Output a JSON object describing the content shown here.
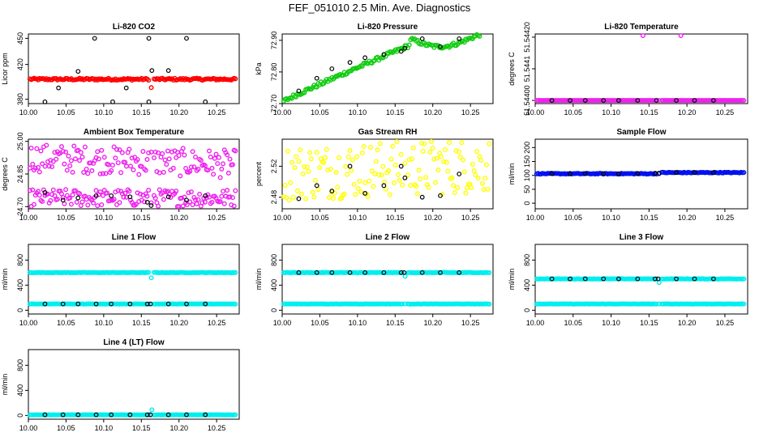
{
  "page_title": "FEF_051010  2.5 Min. Ave. Diagnostics",
  "colors": {
    "red": "#ff0000",
    "green": "#11cc11",
    "magenta": "#ee22ee",
    "yellow": "#ffff00",
    "blue": "#0011ee",
    "cyan": "#00eeee",
    "black": "#000000"
  },
  "chart_data": [
    {
      "type": "scatter",
      "title": "Li-820 CO2",
      "ylabel": "Licor ppm",
      "xlim": [
        10.0,
        10.28
      ],
      "ylim": [
        375,
        455
      ],
      "xticks": [
        "10.00",
        "10.05",
        "10.10",
        "10.15",
        "10.20",
        "10.25"
      ],
      "yticks": [
        {
          "v": 380,
          "t": "380"
        },
        {
          "v": 420,
          "t": "420"
        },
        {
          "v": 450,
          "t": "450"
        }
      ],
      "series": [
        {
          "name": "co2",
          "color": "red",
          "gen": "flat",
          "base": 403,
          "noise": 1.2,
          "dip_at": 10.163,
          "dip": -10
        }
      ],
      "markers": [
        [
          10.022,
          377
        ],
        [
          10.04,
          393
        ],
        [
          10.066,
          412
        ],
        [
          10.088,
          450
        ],
        [
          10.112,
          377
        ],
        [
          10.13,
          393
        ],
        [
          10.16,
          450
        ],
        [
          10.16,
          377
        ],
        [
          10.164,
          413
        ],
        [
          10.21,
          450
        ],
        [
          10.235,
          377
        ],
        [
          10.186,
          413
        ]
      ]
    },
    {
      "type": "scatter",
      "title": "Li-820 Pressure",
      "ylabel": "kPa",
      "xlim": [
        10.0,
        10.28
      ],
      "ylim": [
        72.7,
        72.92
      ],
      "xticks": [
        "10.00",
        "10.05",
        "10.10",
        "10.15",
        "10.20",
        "10.25"
      ],
      "yticks": [
        {
          "v": 72.7,
          "t": "72.70"
        },
        {
          "v": 72.8,
          "t": "72.80"
        },
        {
          "v": 72.9,
          "t": "72.90"
        }
      ],
      "series": [
        {
          "name": "pressure",
          "color": "green",
          "gen": "pressure"
        }
      ],
      "markers": [
        [
          10.022,
          72.74
        ],
        [
          10.046,
          72.78
        ],
        [
          10.066,
          72.81
        ],
        [
          10.09,
          72.83
        ],
        [
          10.11,
          72.845
        ],
        [
          10.135,
          72.855
        ],
        [
          10.158,
          72.865
        ],
        [
          10.163,
          72.875
        ],
        [
          10.186,
          72.905
        ],
        [
          10.21,
          72.88
        ],
        [
          10.235,
          72.905
        ]
      ]
    },
    {
      "type": "scatter",
      "title": "Li-820 Temperature",
      "ylabel": "degrees C",
      "xlim": [
        10.0,
        10.28
      ],
      "ylim": [
        51.54399,
        51.54421
      ],
      "xticks": [
        "10.00",
        "10.05",
        "10.10",
        "10.15",
        "10.20",
        "10.25"
      ],
      "yticks": [
        {
          "v": 51.544,
          "t": "51.54400"
        },
        {
          "v": 51.5441,
          "t": "51.5441"
        },
        {
          "v": 51.5442,
          "t": "51.54420"
        }
      ],
      "series": [
        {
          "name": "temp",
          "color": "magenta",
          "gen": "flat",
          "base": 51.544,
          "noise": 0
        }
      ],
      "outliers": [
        [
          10.142,
          51.54421
        ],
        [
          10.192,
          51.54421
        ]
      ],
      "markers": [
        [
          10.022,
          51.544
        ],
        [
          10.046,
          51.544
        ],
        [
          10.066,
          51.544
        ],
        [
          10.09,
          51.544
        ],
        [
          10.11,
          51.544
        ],
        [
          10.135,
          51.544
        ],
        [
          10.16,
          51.544
        ],
        [
          10.186,
          51.544
        ],
        [
          10.21,
          51.544
        ],
        [
          10.235,
          51.544
        ]
      ]
    },
    {
      "type": "scatter",
      "title": "Ambient Box Temperature",
      "ylabel": "degrees C",
      "xlim": [
        10.0,
        10.28
      ],
      "ylim": [
        24.69,
        25.01
      ],
      "xticks": [
        "10.00",
        "10.05",
        "10.10",
        "10.15",
        "10.20",
        "10.25"
      ],
      "yticks": [
        {
          "v": 24.7,
          "t": "24.70"
        },
        {
          "v": 24.85,
          "t": "24.85"
        },
        {
          "v": 25.0,
          "t": "25.00"
        }
      ],
      "series": [
        {
          "name": "upper",
          "color": "magenta",
          "gen": "band",
          "lo": 24.86,
          "hi": 24.99,
          "trend": -0.03
        },
        {
          "name": "lower",
          "color": "magenta",
          "gen": "band",
          "lo": 24.7,
          "hi": 24.78,
          "trend": 0.0
        }
      ],
      "markers": [
        [
          10.022,
          24.765
        ],
        [
          10.046,
          24.73
        ],
        [
          10.066,
          24.74
        ],
        [
          10.09,
          24.75
        ],
        [
          10.11,
          24.75
        ],
        [
          10.135,
          24.745
        ],
        [
          10.158,
          24.72
        ],
        [
          10.163,
          24.705
        ],
        [
          10.186,
          24.745
        ],
        [
          10.21,
          24.73
        ],
        [
          10.235,
          24.75
        ]
      ]
    },
    {
      "type": "scatter",
      "title": "Gas Stream RH",
      "ylabel": "percent",
      "xlim": [
        10.0,
        10.28
      ],
      "ylim": [
        2.465,
        2.555
      ],
      "xticks": [
        "10.00",
        "10.05",
        "10.10",
        "10.15",
        "10.20",
        "10.25"
      ],
      "yticks": [
        {
          "v": 2.48,
          "t": "2.48"
        },
        {
          "v": 2.52,
          "t": "2.52"
        }
      ],
      "series": [
        {
          "name": "rh",
          "color": "yellow",
          "gen": "band",
          "lo": 2.475,
          "hi": 2.548,
          "trend": 0.01
        }
      ],
      "markers": [
        [
          10.022,
          2.478
        ],
        [
          10.046,
          2.495
        ],
        [
          10.066,
          2.488
        ],
        [
          10.09,
          2.52
        ],
        [
          10.11,
          2.485
        ],
        [
          10.135,
          2.495
        ],
        [
          10.158,
          2.52
        ],
        [
          10.163,
          2.505
        ],
        [
          10.186,
          2.48
        ],
        [
          10.21,
          2.482
        ],
        [
          10.235,
          2.51
        ]
      ]
    },
    {
      "type": "scatter",
      "title": "Sample Flow",
      "ylabel": "ml/min",
      "xlim": [
        10.0,
        10.28
      ],
      "ylim": [
        -20,
        230
      ],
      "xticks": [
        "10.00",
        "10.05",
        "10.10",
        "10.15",
        "10.20",
        "10.25"
      ],
      "yticks": [
        {
          "v": 0,
          "t": "0"
        },
        {
          "v": 50,
          "t": "50"
        },
        {
          "v": 100,
          "t": "100"
        },
        {
          "v": 150,
          "t": "150"
        },
        {
          "v": 200,
          "t": "200"
        }
      ],
      "series": [
        {
          "name": "flow",
          "color": "blue",
          "gen": "flat",
          "base": 106,
          "noise": 1.5,
          "step_at": 10.165,
          "step": 4
        }
      ],
      "markers": [
        [
          10.022,
          106
        ],
        [
          10.046,
          106
        ],
        [
          10.066,
          106
        ],
        [
          10.09,
          106
        ],
        [
          10.11,
          106
        ],
        [
          10.135,
          107
        ],
        [
          10.158,
          108
        ],
        [
          10.163,
          108
        ],
        [
          10.186,
          110
        ],
        [
          10.21,
          110
        ],
        [
          10.235,
          110
        ]
      ]
    },
    {
      "type": "scatter",
      "title": "Line 1 Flow",
      "ylabel": "ml/min",
      "xlim": [
        10.0,
        10.28
      ],
      "ylim": [
        -60,
        1050
      ],
      "xticks": [
        "10.00",
        "10.05",
        "10.10",
        "10.15",
        "10.20",
        "10.25"
      ],
      "yticks": [
        {
          "v": 0,
          "t": "0"
        },
        {
          "v": 400,
          "t": "400"
        },
        {
          "v": 800,
          "t": "800"
        }
      ],
      "series": [
        {
          "name": "high",
          "color": "cyan",
          "gen": "flat",
          "base": 600,
          "noise": 4,
          "dip_at": 10.163,
          "dip": -80
        },
        {
          "name": "low",
          "color": "cyan",
          "gen": "flat",
          "base": 100,
          "noise": 2
        }
      ],
      "markers": [
        [
          10.022,
          100
        ],
        [
          10.046,
          100
        ],
        [
          10.066,
          100
        ],
        [
          10.09,
          100
        ],
        [
          10.11,
          100
        ],
        [
          10.135,
          100
        ],
        [
          10.158,
          100
        ],
        [
          10.162,
          100
        ],
        [
          10.186,
          100
        ],
        [
          10.21,
          100
        ],
        [
          10.235,
          100
        ]
      ]
    },
    {
      "type": "scatter",
      "title": "Line 2 Flow",
      "ylabel": "ml/min",
      "xlim": [
        10.0,
        10.28
      ],
      "ylim": [
        -60,
        1050
      ],
      "xticks": [
        "10.00",
        "10.05",
        "10.10",
        "10.15",
        "10.20",
        "10.25"
      ],
      "yticks": [
        {
          "v": 0,
          "t": "0"
        },
        {
          "v": 400,
          "t": "400"
        },
        {
          "v": 800,
          "t": "800"
        }
      ],
      "series": [
        {
          "name": "high",
          "color": "cyan",
          "gen": "flat",
          "base": 600,
          "noise": 4,
          "dip_at": 10.163,
          "dip": -60
        },
        {
          "name": "low",
          "color": "cyan",
          "gen": "flat",
          "base": 100,
          "noise": 2
        }
      ],
      "markers": [
        [
          10.022,
          600
        ],
        [
          10.046,
          600
        ],
        [
          10.066,
          600
        ],
        [
          10.09,
          600
        ],
        [
          10.11,
          600
        ],
        [
          10.135,
          600
        ],
        [
          10.158,
          600
        ],
        [
          10.162,
          600
        ],
        [
          10.186,
          600
        ],
        [
          10.21,
          600
        ],
        [
          10.235,
          600
        ]
      ]
    },
    {
      "type": "scatter",
      "title": "Line 3 Flow",
      "ylabel": "ml/min",
      "xlim": [
        10.0,
        10.28
      ],
      "ylim": [
        -60,
        1050
      ],
      "xticks": [
        "10.00",
        "10.05",
        "10.10",
        "10.15",
        "10.20",
        "10.25"
      ],
      "yticks": [
        {
          "v": 0,
          "t": "0"
        },
        {
          "v": 400,
          "t": "400"
        },
        {
          "v": 800,
          "t": "800"
        }
      ],
      "series": [
        {
          "name": "high",
          "color": "cyan",
          "gen": "flat",
          "base": 500,
          "noise": 4,
          "dip_at": 10.163,
          "dip": -60
        },
        {
          "name": "low",
          "color": "cyan",
          "gen": "flat",
          "base": 100,
          "noise": 2
        }
      ],
      "markers": [
        [
          10.022,
          500
        ],
        [
          10.046,
          500
        ],
        [
          10.066,
          500
        ],
        [
          10.09,
          500
        ],
        [
          10.11,
          500
        ],
        [
          10.135,
          500
        ],
        [
          10.158,
          500
        ],
        [
          10.162,
          500
        ],
        [
          10.186,
          500
        ],
        [
          10.21,
          500
        ],
        [
          10.235,
          500
        ]
      ]
    },
    {
      "type": "scatter",
      "title": "Line 4 (LT) Flow",
      "ylabel": "ml/min",
      "xlim": [
        10.0,
        10.28
      ],
      "ylim": [
        -60,
        1050
      ],
      "xticks": [
        "10.00",
        "10.05",
        "10.10",
        "10.15",
        "10.20",
        "10.25"
      ],
      "yticks": [
        {
          "v": 0,
          "t": "0"
        },
        {
          "v": 400,
          "t": "400"
        },
        {
          "v": 800,
          "t": "800"
        }
      ],
      "series": [
        {
          "name": "flow",
          "color": "cyan",
          "gen": "flat",
          "base": 10,
          "noise": 2
        }
      ],
      "outliers": [
        [
          10.164,
          90
        ]
      ],
      "markers": [
        [
          10.022,
          10
        ],
        [
          10.046,
          10
        ],
        [
          10.066,
          10
        ],
        [
          10.09,
          10
        ],
        [
          10.11,
          10
        ],
        [
          10.135,
          10
        ],
        [
          10.158,
          10
        ],
        [
          10.162,
          10
        ],
        [
          10.186,
          10
        ],
        [
          10.21,
          10
        ],
        [
          10.235,
          10
        ]
      ]
    }
  ]
}
